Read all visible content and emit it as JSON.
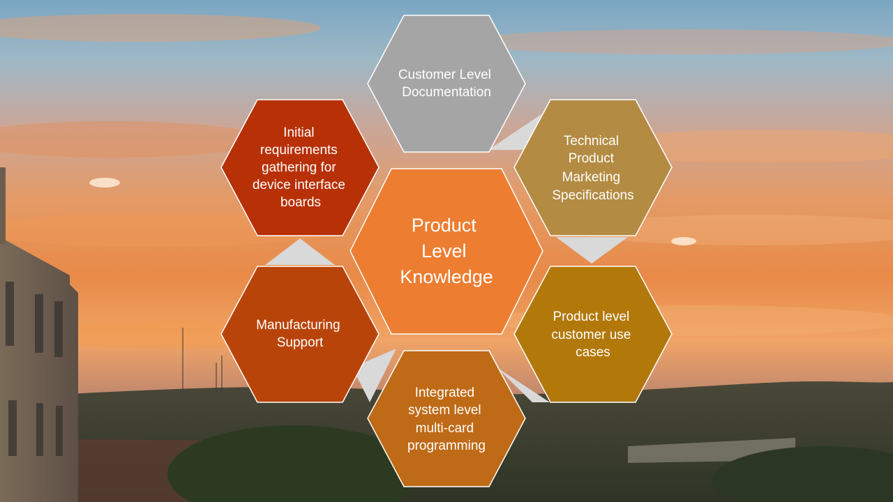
{
  "center": {
    "lines": [
      "Product",
      "Level",
      "Knowledge"
    ],
    "color": "#ED7D31"
  },
  "hexagons": [
    {
      "id": "customer-level-documentation",
      "lines": [
        "Customer Level",
        "Documentation"
      ],
      "color": "#A5A5A5"
    },
    {
      "id": "technical-product-marketing",
      "lines": [
        "Technical",
        "Product",
        "Marketing",
        "Specifications"
      ],
      "color": "#B38B42"
    },
    {
      "id": "product-level-use-cases",
      "lines": [
        "Product level",
        "customer use",
        "cases"
      ],
      "color": "#B2780A"
    },
    {
      "id": "integrated-system-programming",
      "lines": [
        "Integrated",
        "system level",
        "multi-card",
        "programming"
      ],
      "color": "#BF6A16"
    },
    {
      "id": "manufacturing-support",
      "lines": [
        "Manufacturing",
        "Support"
      ],
      "color": "#B9440A"
    },
    {
      "id": "initial-requirements",
      "lines": [
        "Initial",
        "requirements",
        "gathering for",
        "device interface",
        "boards"
      ],
      "color": "#B83006"
    }
  ],
  "connector_color": "#D9D9D9"
}
